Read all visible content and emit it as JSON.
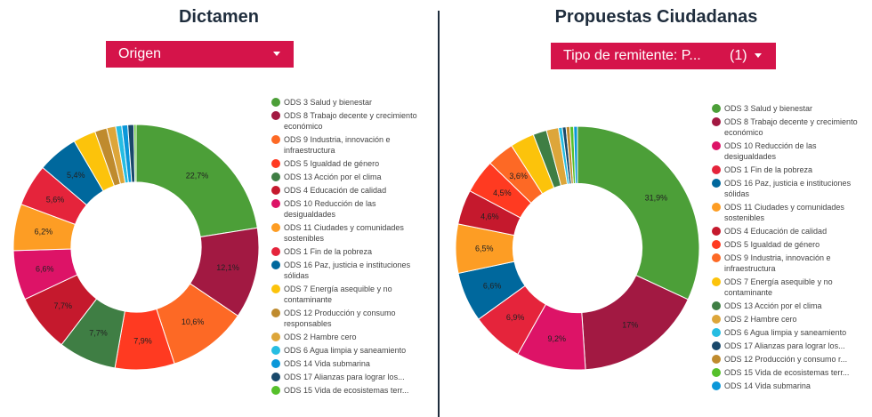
{
  "left": {
    "title": "Dictamen",
    "filter_label": "Origen",
    "chart_data": {
      "type": "pie",
      "donut": true,
      "title": "Dictamen",
      "slices": [
        {
          "label": "ODS 3 Salud y bienestar",
          "value": 22.7,
          "display": "22,7%",
          "color": "#4c9f38"
        },
        {
          "label": "ODS 8 Trabajo decente y crecimiento económico",
          "value": 12.1,
          "display": "12,1%",
          "color": "#a21942"
        },
        {
          "label": "ODS 9 Industria, innovación e infraestructura",
          "value": 10.6,
          "display": "10,6%",
          "color": "#fd6925"
        },
        {
          "label": "ODS 5 Igualdad de género",
          "value": 7.9,
          "display": "7,9%",
          "color": "#ff3a21"
        },
        {
          "label": "ODS 13 Acción por el clima",
          "value": 7.7,
          "display": "7,7%",
          "color": "#3f7e44"
        },
        {
          "label": "ODS 4 Educación de calidad",
          "value": 7.7,
          "display": "7,7%",
          "color": "#c5192d"
        },
        {
          "label": "ODS 10 Reducción de las desigualdades",
          "value": 6.6,
          "display": "6,6%",
          "color": "#dd1367"
        },
        {
          "label": "ODS 11 Ciudades y comunidades sostenibles",
          "value": 6.2,
          "display": "6,2%",
          "color": "#fd9d24"
        },
        {
          "label": "ODS 1 Fin de la pobreza",
          "value": 5.6,
          "display": "5,6%",
          "color": "#e5243b"
        },
        {
          "label": "ODS 16 Paz, justicia e instituciones sólidas",
          "value": 5.4,
          "display": "5,4%",
          "color": "#00689d"
        },
        {
          "label": "ODS 7 Energía asequible y no contaminante",
          "value": 3.0,
          "display": "",
          "color": "#fcc30b"
        },
        {
          "label": "ODS 12 Producción y consumo responsables",
          "value": 1.6,
          "display": "",
          "color": "#bf8b2e"
        },
        {
          "label": "ODS 2 Hambre cero",
          "value": 1.2,
          "display": "",
          "color": "#dda63a"
        },
        {
          "label": "ODS 6 Agua limpia y saneamiento",
          "value": 0.8,
          "display": "",
          "color": "#26bde2"
        },
        {
          "label": "ODS 14 Vida submarina",
          "value": 0.8,
          "display": "",
          "color": "#0a97d9"
        },
        {
          "label": "ODS 17 Alianzas para lograr los...",
          "value": 0.8,
          "display": "",
          "color": "#19486a"
        },
        {
          "label": "ODS 15 Vida de ecosistemas terr...",
          "value": 0.3,
          "display": "",
          "color": "#56c02b"
        }
      ]
    }
  },
  "right": {
    "title": "Propuestas Ciudadanas",
    "filter_label": "Tipo de remitente: P...",
    "filter_count": "(1)",
    "chart_data": {
      "type": "pie",
      "donut": true,
      "title": "Propuestas Ciudadanas",
      "slices": [
        {
          "label": "ODS 3 Salud y bienestar",
          "value": 31.9,
          "display": "31,9%",
          "color": "#4c9f38"
        },
        {
          "label": "ODS 8 Trabajo decente y crecimiento económico",
          "value": 17.0,
          "display": "17%",
          "color": "#a21942"
        },
        {
          "label": "ODS 10 Reducción de las desigualdades",
          "value": 9.2,
          "display": "9,2%",
          "color": "#dd1367"
        },
        {
          "label": "ODS 1 Fin de la pobreza",
          "value": 6.9,
          "display": "6,9%",
          "color": "#e5243b"
        },
        {
          "label": "ODS 16 Paz, justicia e instituciones sólidas",
          "value": 6.6,
          "display": "6,6%",
          "color": "#00689d"
        },
        {
          "label": "ODS 11 Ciudades y comunidades sostenibles",
          "value": 6.5,
          "display": "6,5%",
          "color": "#fd9d24"
        },
        {
          "label": "ODS 4 Educación de calidad",
          "value": 4.6,
          "display": "4,6%",
          "color": "#c5192d"
        },
        {
          "label": "ODS 5 Igualdad de género",
          "value": 4.5,
          "display": "4,5%",
          "color": "#ff3a21"
        },
        {
          "label": "ODS 9 Industria, innovación e infraestructura",
          "value": 3.6,
          "display": "3,6%",
          "color": "#fd6925"
        },
        {
          "label": "ODS 7 Energía asequible y no contaminante",
          "value": 3.2,
          "display": "",
          "color": "#fcc30b"
        },
        {
          "label": "ODS 13 Acción por el clima",
          "value": 1.8,
          "display": "",
          "color": "#3f7e44"
        },
        {
          "label": "ODS 2 Hambre cero",
          "value": 1.6,
          "display": "",
          "color": "#dda63a"
        },
        {
          "label": "ODS 6 Agua limpia y saneamiento",
          "value": 0.5,
          "display": "",
          "color": "#26bde2"
        },
        {
          "label": "ODS 17 Alianzas para lograr los...",
          "value": 0.5,
          "display": "",
          "color": "#19486a"
        },
        {
          "label": "ODS 12 Producción y consumo r...",
          "value": 0.5,
          "display": "",
          "color": "#bf8b2e"
        },
        {
          "label": "ODS 15 Vida de ecosistemas terr...",
          "value": 0.5,
          "display": "",
          "color": "#56c02b"
        },
        {
          "label": "ODS 14 Vida submarina",
          "value": 0.5,
          "display": "",
          "color": "#0a97d9"
        }
      ]
    }
  }
}
